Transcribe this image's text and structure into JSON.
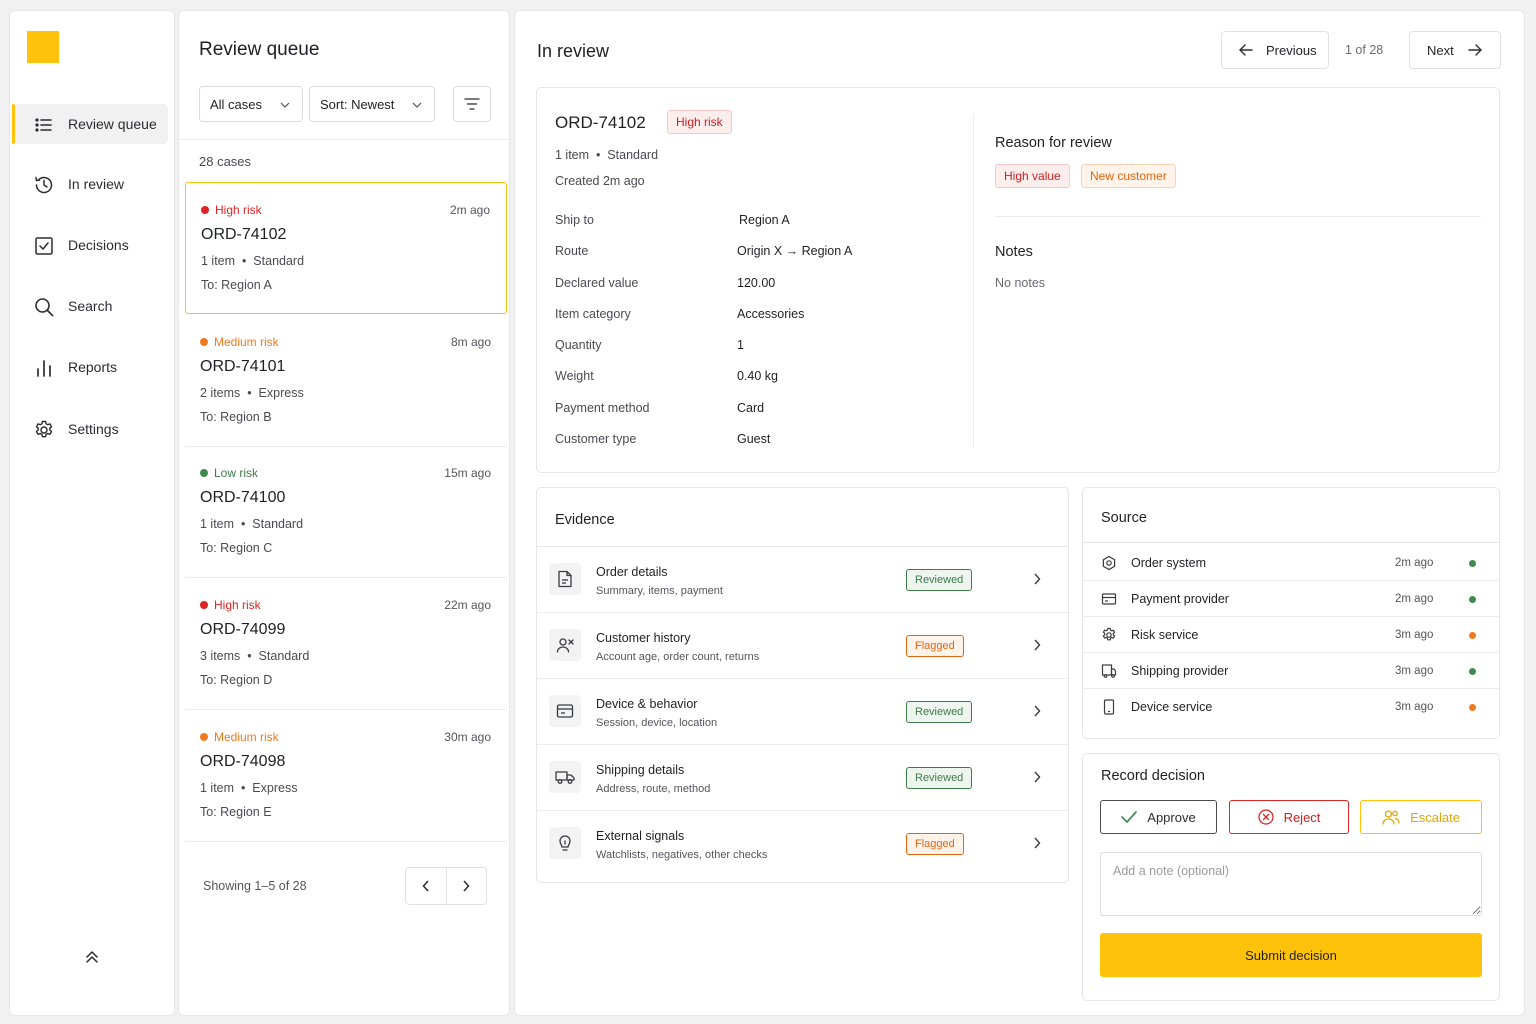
{
  "sidebar": {
    "items": [
      {
        "label": "Review queue",
        "icon": "list-icon"
      },
      {
        "label": "In review",
        "icon": "history-icon"
      },
      {
        "label": "Decisions",
        "icon": "checkbox-icon"
      },
      {
        "label": "Search",
        "icon": "search-icon"
      },
      {
        "label": "Reports",
        "icon": "bar-chart-icon"
      },
      {
        "label": "Settings",
        "icon": "gear-icon"
      }
    ]
  },
  "queue": {
    "title": "Review queue",
    "filter_label": "All cases",
    "sort_label": "Sort: Newest",
    "count_text": "28 cases",
    "cases": [
      {
        "risk": "High risk",
        "time": "2m ago",
        "id": "ORD-74102",
        "meta": "1 item  •  Standard",
        "to": "To: Region A"
      },
      {
        "risk": "Medium risk",
        "time": "8m ago",
        "id": "ORD-74101",
        "meta": "2 items  •  Express",
        "to": "To: Region B"
      },
      {
        "risk": "Low risk",
        "time": "15m ago",
        "id": "ORD-74100",
        "meta": "1 item  •  Standard",
        "to": "To: Region C"
      },
      {
        "risk": "High risk",
        "time": "22m ago",
        "id": "ORD-74099",
        "meta": "3 items  •  Standard",
        "to": "To: Region D"
      },
      {
        "risk": "Medium risk",
        "time": "30m ago",
        "id": "ORD-74098",
        "meta": "1 item  •  Express",
        "to": "To: Region E"
      }
    ],
    "showing": "Showing 1–5 of 28"
  },
  "main": {
    "title": "In review",
    "previous_label": "Previous",
    "counter": "1 of 28",
    "next_label": "Next"
  },
  "summary": {
    "order_id": "ORD-74102",
    "risk_badge": "High risk",
    "meta": "1 item  •  Standard",
    "created": "Created 2m ago",
    "details": [
      {
        "key": "Ship to",
        "value": "Region A"
      },
      {
        "key": "Route",
        "value": "Origin X → Region A"
      },
      {
        "key": "Declared value",
        "value": "120.00"
      },
      {
        "key": "Item category",
        "value": "Accessories"
      },
      {
        "key": "Quantity",
        "value": "1"
      },
      {
        "key": "Weight",
        "value": "0.40 kg"
      },
      {
        "key": "Payment method",
        "value": "Card"
      },
      {
        "key": "Customer type",
        "value": "Guest"
      }
    ],
    "reason_title": "Reason for review",
    "reasons": [
      "High value",
      "New customer"
    ],
    "notes_title": "Notes",
    "notes_empty": "No notes"
  },
  "evidence": {
    "title": "Evidence",
    "items": [
      {
        "name": "Order details",
        "desc": "Summary, items, payment",
        "status": "Reviewed"
      },
      {
        "name": "Customer history",
        "desc": "Account age, order count, returns",
        "status": "Flagged"
      },
      {
        "name": "Device & behavior",
        "desc": "Session, device, location",
        "status": "Reviewed"
      },
      {
        "name": "Shipping details",
        "desc": "Address, route, method",
        "status": "Reviewed"
      },
      {
        "name": "External signals",
        "desc": "Watchlists, negatives, other checks",
        "status": "Flagged"
      }
    ]
  },
  "source": {
    "title": "Source",
    "items": [
      {
        "name": "Order system",
        "time": "2m ago",
        "status_color": "#3f8a4f"
      },
      {
        "name": "Payment provider",
        "time": "2m ago",
        "status_color": "#3f8a4f"
      },
      {
        "name": "Risk service",
        "time": "3m ago",
        "status_color": "#f07a1f"
      },
      {
        "name": "Shipping provider",
        "time": "3m ago",
        "status_color": "#3f8a4f"
      },
      {
        "name": "Device service",
        "time": "3m ago",
        "status_color": "#f07a1f"
      }
    ]
  },
  "decision": {
    "title": "Record decision",
    "approve_label": "Approve",
    "reject_label": "Reject",
    "escalate_label": "Escalate",
    "note_placeholder": "Add a note (optional)",
    "submit_label": "Submit decision"
  },
  "colors": {
    "accent": "#fec20a",
    "high_risk": "#e02424",
    "medium_risk": "#f07a1f",
    "low_risk": "#3f8a4f"
  }
}
